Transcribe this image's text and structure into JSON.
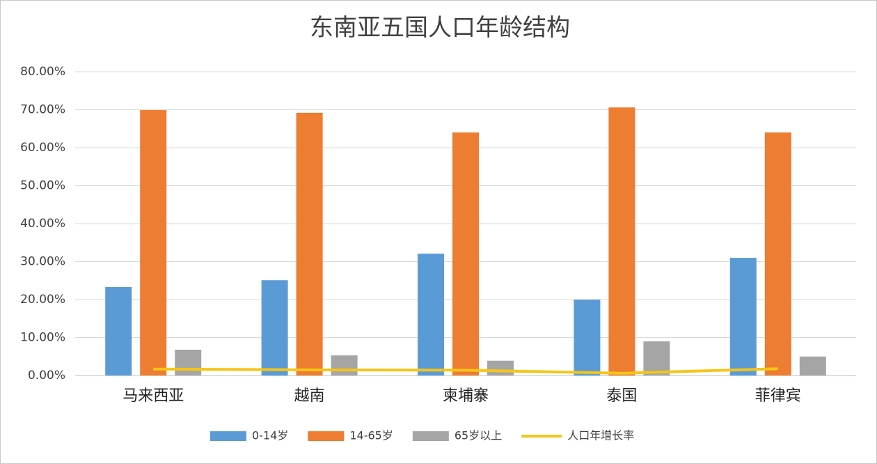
{
  "chart_data": {
    "type": "bar",
    "title": "东南亚五国人口年龄结构",
    "categories": [
      "马来西亚",
      "越南",
      "柬埔寨",
      "泰国",
      "菲律宾"
    ],
    "series": [
      {
        "name": "0-14岁",
        "color": "#5b9bd5",
        "values": [
          23.3,
          25.1,
          32.1,
          20.0,
          31.0
        ]
      },
      {
        "name": "14-65岁",
        "color": "#ed7d31",
        "values": [
          69.9,
          69.2,
          64.0,
          70.6,
          64.0
        ]
      },
      {
        "name": "65岁以上",
        "color": "#a5a5a5",
        "values": [
          6.8,
          5.3,
          3.9,
          9.0,
          5.0
        ]
      },
      {
        "name": "人口年增长率",
        "color": "#f5c518",
        "type": "line",
        "values": [
          1.7,
          1.5,
          1.4,
          0.6,
          1.8
        ]
      }
    ],
    "ylim": [
      0,
      80
    ],
    "yticks": [
      {
        "value": 0,
        "label": "0.00%"
      },
      {
        "value": 10,
        "label": "10.00%"
      },
      {
        "value": 20,
        "label": "20.00%"
      },
      {
        "value": 30,
        "label": "30.00%"
      },
      {
        "value": 40,
        "label": "40.00%"
      },
      {
        "value": 50,
        "label": "50.00%"
      },
      {
        "value": 60,
        "label": "60.00%"
      },
      {
        "value": 70,
        "label": "70.00%"
      },
      {
        "value": 80,
        "label": "80.00%"
      }
    ],
    "grid": true,
    "legend": "bottom"
  }
}
